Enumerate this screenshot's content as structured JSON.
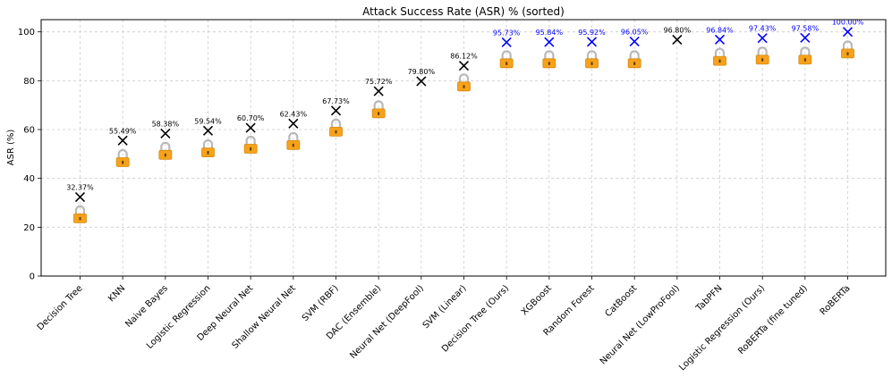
{
  "chart_data": {
    "type": "scatter",
    "title": "Attack Success Rate (ASR) % (sorted)",
    "xlabel": "",
    "ylabel": "ASR (%)",
    "ylim": [
      0,
      105
    ],
    "yticks": [
      0,
      20,
      40,
      60,
      80,
      100
    ],
    "grid": true,
    "categories": [
      "Decision Tree",
      "KNN",
      "Naive Bayes",
      "Logistic Regression",
      "Deep Neural Net",
      "Shallow Neural Net",
      "SVM (RBF)",
      "DAC (Ensemble)",
      "Neural Net (DeepFool)",
      "SVM (Linear)",
      "Decision Tree (Ours)",
      "XGBoost",
      "Random Forest",
      "CatBoost",
      "Neural Net (LowProFool)",
      "TabPFN",
      "Logistic Regression (Ours)",
      "RoBERTa (fine tuned)",
      "RoBERTa"
    ],
    "series": [
      {
        "name": "ASR",
        "marker": "x",
        "values": [
          32.37,
          55.49,
          58.38,
          59.54,
          60.7,
          62.43,
          67.73,
          75.72,
          79.8,
          86.12,
          95.73,
          95.84,
          95.92,
          96.05,
          96.8,
          96.84,
          97.43,
          97.58,
          100.0
        ],
        "labels": [
          "32.37%",
          "55.49%",
          "58.38%",
          "59.54%",
          "60.70%",
          "62.43%",
          "67.73%",
          "75.72%",
          "79.80%",
          "86.12%",
          "95.73%",
          "95.84%",
          "95.92%",
          "96.05%",
          "96.80%",
          "96.84%",
          "97.43%",
          "97.58%",
          "100.00%"
        ],
        "colors": [
          "#000000",
          "#000000",
          "#000000",
          "#000000",
          "#000000",
          "#000000",
          "#000000",
          "#000000",
          "#000000",
          "#000000",
          "#0000ff",
          "#0000ff",
          "#0000ff",
          "#0000ff",
          "#000000",
          "#0000ff",
          "#0000ff",
          "#0000ff",
          "#0000ff"
        ]
      },
      {
        "name": "Lock",
        "marker": "lock-icon",
        "values": [
          24,
          47,
          50,
          51,
          52.5,
          54,
          59.5,
          67,
          null,
          78,
          87.5,
          87.5,
          87.5,
          87.5,
          null,
          88.5,
          89,
          89,
          91.5
        ]
      }
    ]
  }
}
